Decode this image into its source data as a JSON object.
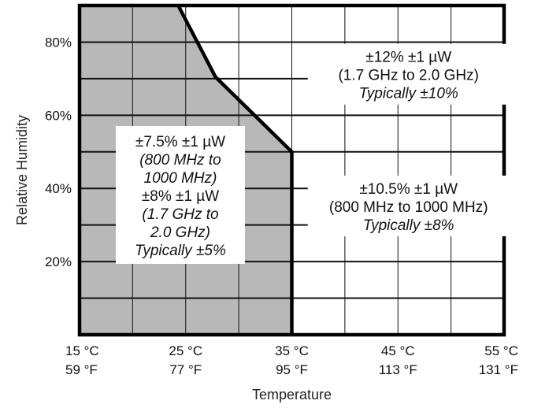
{
  "chart_data": {
    "type": "area",
    "title": "",
    "xlabel": "Temperature",
    "ylabel": "Relative Humidity",
    "xlim": [
      15,
      55
    ],
    "ylim": [
      0,
      90
    ],
    "x_ticks": [
      {
        "value": 15,
        "label_c": "15 °C",
        "label_f": "59 °F"
      },
      {
        "value": 25,
        "label_c": "25 °C",
        "label_f": "77 °F"
      },
      {
        "value": 35,
        "label_c": "35 °C",
        "label_f": "95 °F"
      },
      {
        "value": 45,
        "label_c": "45 °C",
        "label_f": "113 °F"
      },
      {
        "value": 55,
        "label_c": "55 °C",
        "label_f": "131 °F"
      }
    ],
    "y_ticks": [
      {
        "value": 20,
        "label": "20%"
      },
      {
        "value": 40,
        "label": "40%"
      },
      {
        "value": 60,
        "label": "60%"
      },
      {
        "value": 80,
        "label": "80%"
      }
    ],
    "grid": {
      "x_minor_step": 5,
      "y_minor_step": 10
    },
    "shaded_region": {
      "color": "#b8b8b8",
      "boundary": [
        {
          "x": 15,
          "y": 90
        },
        {
          "x": 24.3,
          "y": 90
        },
        {
          "x": 27.8,
          "y": 70.5
        },
        {
          "x": 35,
          "y": 50
        },
        {
          "x": 35,
          "y": 0
        },
        {
          "x": 15,
          "y": 0
        }
      ]
    },
    "annotations": [
      {
        "region": "shaded",
        "center": {
          "x": 24.5,
          "y": 38
        },
        "boxed": true,
        "lines": [
          {
            "text": "±7.5% ±1 µW",
            "italic": false
          },
          {
            "text": "(800 MHz to",
            "italic": true
          },
          {
            "text": "1000 MHz)",
            "italic": true
          },
          {
            "text": "±8% ±1 µW",
            "italic": false
          },
          {
            "text": "(1.7 GHz to",
            "italic": true
          },
          {
            "text": "2.0 GHz)",
            "italic": true
          },
          {
            "text": "Typically ±5%",
            "italic": true
          }
        ]
      },
      {
        "region": "upper-right",
        "center": {
          "x": 46,
          "y": 71
        },
        "boxed": false,
        "lines": [
          {
            "text": "±12% ±1 µW",
            "italic": false
          },
          {
            "text": "(1.7 GHz to 2.0 GHz)",
            "italic": false
          },
          {
            "text": "Typically ±10%",
            "italic": true
          }
        ]
      },
      {
        "region": "lower-right",
        "center": {
          "x": 46,
          "y": 35
        },
        "boxed": false,
        "lines": [
          {
            "text": "±10.5% ±1 µW",
            "italic": false
          },
          {
            "text": "(800 MHz to 1000 MHz)",
            "italic": false
          },
          {
            "text": "Typically ±8%",
            "italic": true
          }
        ]
      }
    ]
  }
}
